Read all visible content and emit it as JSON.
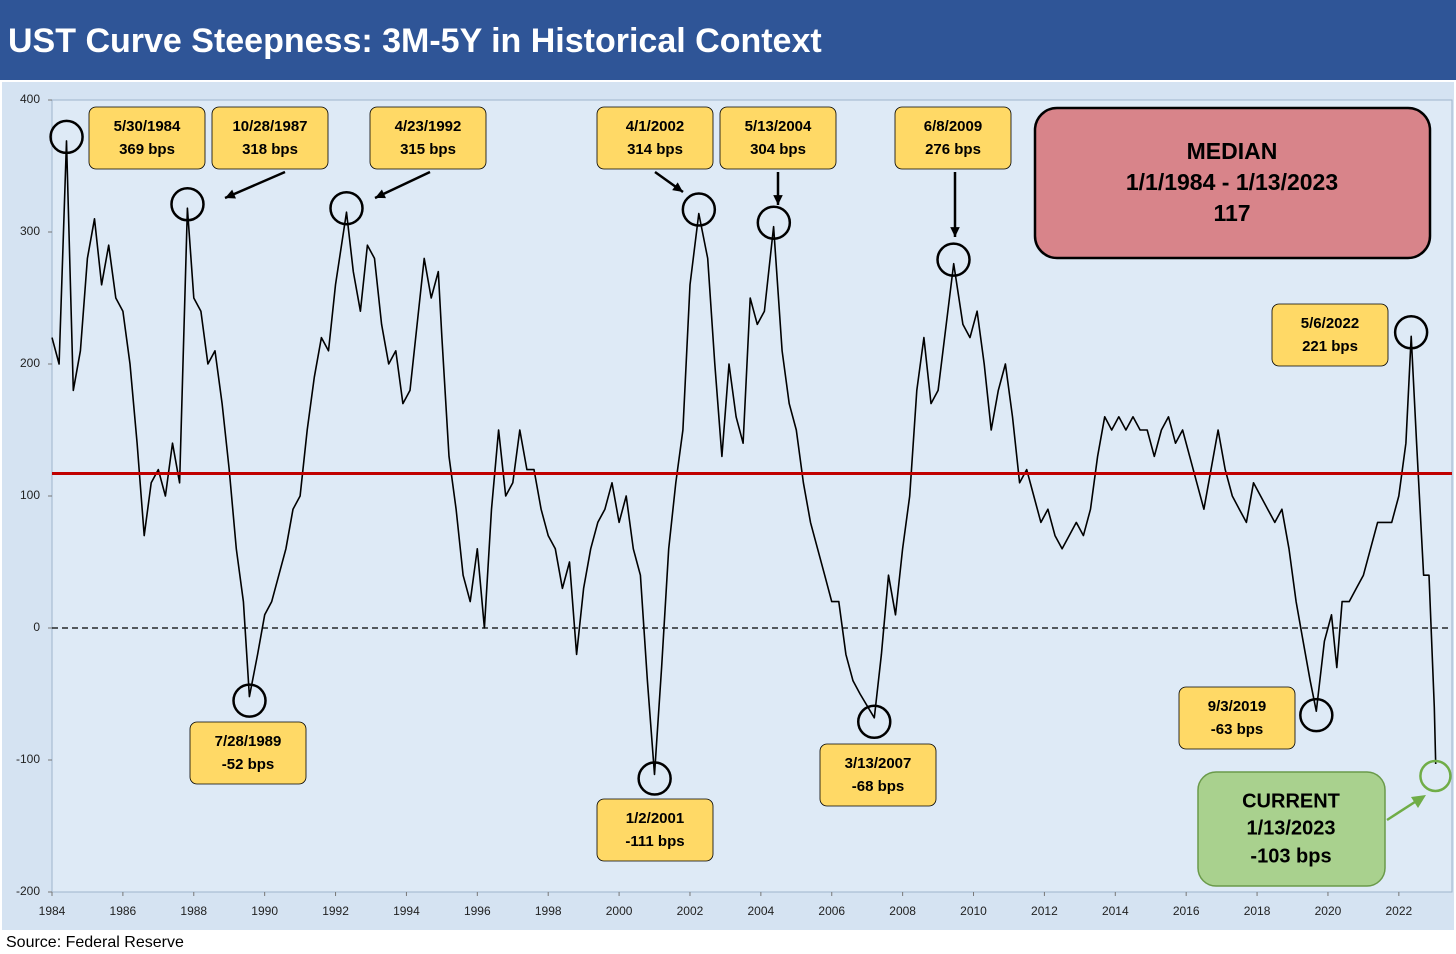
{
  "chart_data": {
    "type": "line",
    "title": "UST Curve Steepness: 3M-5Y in Historical Context",
    "source": "Source: Federal Reserve",
    "color": "#000000",
    "xlim": [
      1984,
      2023.5
    ],
    "ylim": [
      -200,
      400
    ],
    "xticks": [
      1984,
      1986,
      1988,
      1990,
      1992,
      1994,
      1996,
      1998,
      2000,
      2002,
      2004,
      2006,
      2008,
      2010,
      2012,
      2014,
      2016,
      2018,
      2020,
      2022
    ],
    "yticks": [
      -200,
      -100,
      0,
      100,
      200,
      300,
      400
    ],
    "x": [
      1984.0,
      1984.2,
      1984.41,
      1984.6,
      1984.8,
      1985.0,
      1985.2,
      1985.4,
      1985.6,
      1985.8,
      1986.0,
      1986.2,
      1986.4,
      1986.6,
      1986.8,
      1987.0,
      1987.2,
      1987.4,
      1987.6,
      1987.82,
      1988.0,
      1988.2,
      1988.4,
      1988.6,
      1988.8,
      1989.0,
      1989.2,
      1989.4,
      1989.57,
      1989.8,
      1990.0,
      1990.2,
      1990.4,
      1990.6,
      1990.8,
      1991.0,
      1991.2,
      1991.4,
      1991.6,
      1991.8,
      1992.0,
      1992.31,
      1992.5,
      1992.7,
      1992.9,
      1993.1,
      1993.3,
      1993.5,
      1993.7,
      1993.9,
      1994.1,
      1994.3,
      1994.5,
      1994.7,
      1994.9,
      1995.0,
      1995.2,
      1995.4,
      1995.6,
      1995.8,
      1996.0,
      1996.2,
      1996.4,
      1996.6,
      1996.8,
      1997.0,
      1997.2,
      1997.4,
      1997.6,
      1997.8,
      1998.0,
      1998.2,
      1998.4,
      1998.6,
      1998.8,
      1999.0,
      1999.2,
      1999.4,
      1999.6,
      1999.8,
      2000.0,
      2000.2,
      2000.4,
      2000.6,
      2000.8,
      2001.0,
      2001.2,
      2001.4,
      2001.6,
      2001.8,
      2002.0,
      2002.25,
      2002.5,
      2002.7,
      2002.9,
      2003.1,
      2003.3,
      2003.5,
      2003.7,
      2003.9,
      2004.1,
      2004.36,
      2004.6,
      2004.8,
      2005.0,
      2005.2,
      2005.4,
      2005.6,
      2005.8,
      2006.0,
      2006.2,
      2006.4,
      2006.6,
      2006.8,
      2007.2,
      2007.4,
      2007.6,
      2007.8,
      2008.0,
      2008.2,
      2008.4,
      2008.6,
      2008.8,
      2009.0,
      2009.44,
      2009.7,
      2009.9,
      2010.1,
      2010.3,
      2010.5,
      2010.7,
      2010.9,
      2011.1,
      2011.3,
      2011.5,
      2011.7,
      2011.9,
      2012.1,
      2012.3,
      2012.5,
      2012.7,
      2012.9,
      2013.1,
      2013.3,
      2013.5,
      2013.7,
      2013.9,
      2014.1,
      2014.3,
      2014.5,
      2014.7,
      2014.9,
      2015.1,
      2015.3,
      2015.5,
      2015.7,
      2015.9,
      2016.1,
      2016.3,
      2016.5,
      2016.7,
      2016.9,
      2017.1,
      2017.3,
      2017.5,
      2017.7,
      2017.9,
      2018.1,
      2018.3,
      2018.5,
      2018.7,
      2018.9,
      2019.1,
      2019.3,
      2019.5,
      2019.67,
      2019.9,
      2020.1,
      2020.25,
      2020.4,
      2020.6,
      2020.8,
      2021.0,
      2021.2,
      2021.4,
      2021.6,
      2021.8,
      2022.0,
      2022.2,
      2022.35,
      2022.5,
      2022.7,
      2022.85,
      2023.0,
      2023.04
    ],
    "values": [
      220,
      200,
      369,
      180,
      210,
      280,
      310,
      260,
      290,
      250,
      240,
      200,
      140,
      70,
      110,
      120,
      100,
      140,
      110,
      318,
      250,
      240,
      200,
      210,
      170,
      120,
      60,
      20,
      -52,
      -20,
      10,
      20,
      40,
      60,
      90,
      100,
      150,
      190,
      220,
      210,
      260,
      315,
      270,
      240,
      290,
      280,
      230,
      200,
      210,
      170,
      180,
      230,
      280,
      250,
      270,
      220,
      130,
      90,
      40,
      20,
      60,
      0,
      90,
      150,
      100,
      110,
      150,
      120,
      120,
      90,
      70,
      60,
      30,
      50,
      -20,
      30,
      60,
      80,
      90,
      110,
      80,
      100,
      60,
      40,
      -40,
      -111,
      -30,
      60,
      110,
      150,
      260,
      314,
      280,
      200,
      130,
      200,
      160,
      140,
      250,
      230,
      240,
      304,
      210,
      170,
      150,
      110,
      80,
      60,
      40,
      20,
      20,
      -20,
      -40,
      -50,
      -68,
      -20,
      40,
      10,
      60,
      100,
      180,
      220,
      170,
      180,
      276,
      230,
      220,
      240,
      200,
      150,
      180,
      200,
      160,
      110,
      120,
      100,
      80,
      90,
      70,
      60,
      70,
      80,
      70,
      90,
      130,
      160,
      150,
      160,
      150,
      160,
      150,
      150,
      130,
      150,
      160,
      140,
      150,
      130,
      110,
      90,
      120,
      150,
      120,
      100,
      90,
      80,
      110,
      100,
      90,
      80,
      90,
      60,
      20,
      -10,
      -40,
      -63,
      -10,
      10,
      -30,
      20,
      20,
      30,
      40,
      60,
      80,
      80,
      80,
      100,
      140,
      221,
      140,
      40,
      40,
      -60,
      -103
    ],
    "median": {
      "title": "MEDIAN",
      "range": "1/1/1984 - 1/13/2023",
      "value": 117,
      "color": "#c00000"
    },
    "annotations": [
      {
        "date": "5/30/1984",
        "value": 369,
        "value_label": "369 bps"
      },
      {
        "date": "10/28/1987",
        "value": 318,
        "value_label": "318 bps"
      },
      {
        "date": "4/23/1992",
        "value": 315,
        "value_label": "315 bps"
      },
      {
        "date": "4/1/2002",
        "value": 314,
        "value_label": "314 bps"
      },
      {
        "date": "5/13/2004",
        "value": 304,
        "value_label": "304 bps"
      },
      {
        "date": "6/8/2009",
        "value": 276,
        "value_label": "276 bps"
      },
      {
        "date": "5/6/2022",
        "value": 221,
        "value_label": "221 bps"
      },
      {
        "date": "7/28/1989",
        "value": -52,
        "value_label": "-52 bps"
      },
      {
        "date": "1/2/2001",
        "value": -111,
        "value_label": "-111 bps"
      },
      {
        "date": "3/13/2007",
        "value": -68,
        "value_label": "-68 bps"
      },
      {
        "date": "9/3/2019",
        "value": -63,
        "value_label": "-63 bps"
      }
    ],
    "current": {
      "title": "CURRENT",
      "date": "1/13/2023",
      "value": -103,
      "value_label": "-103 bps"
    }
  }
}
